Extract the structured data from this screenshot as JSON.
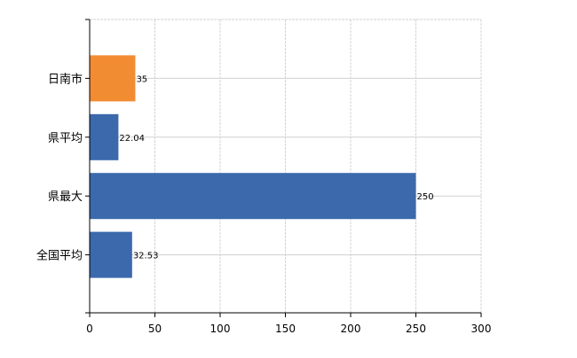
{
  "chart_data": {
    "type": "bar",
    "orientation": "horizontal",
    "categories": [
      "日南市",
      "県平均",
      "県最大",
      "全国平均"
    ],
    "values": [
      35,
      22.04,
      250,
      32.53
    ],
    "data_labels": [
      "35",
      "22.04",
      "250",
      "32.53"
    ],
    "bar_colors": [
      "#F28C33",
      "#3B69AC",
      "#3B69AC",
      "#3B69AC"
    ],
    "title": "",
    "xlabel": "",
    "ylabel": "",
    "xlim": [
      0,
      300
    ],
    "x_ticks": [
      0,
      50,
      100,
      150,
      200,
      250,
      300
    ],
    "x_tick_labels": [
      "0",
      "50",
      "100",
      "150",
      "200",
      "250",
      "300"
    ],
    "grid": true,
    "legend": "none"
  }
}
